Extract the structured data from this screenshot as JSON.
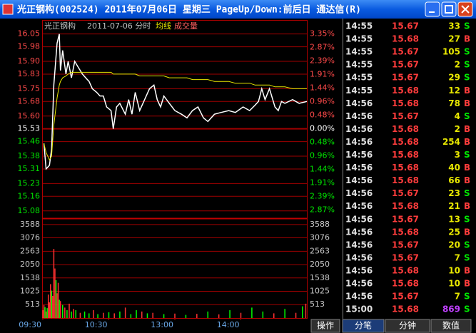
{
  "window": {
    "title": "光正钢构(002524) 2011年07月06日 星期三 PageUp/Down:前后日 通达信(R)"
  },
  "chart_data": [
    {
      "type": "line",
      "title": "光正钢构",
      "subtitle": "2011-07-06 分时",
      "x": [
        1,
        3,
        6,
        8,
        10,
        13,
        15,
        16,
        18,
        21,
        23,
        26,
        29,
        32,
        36,
        39,
        42,
        45,
        49,
        52,
        55,
        58,
        62,
        64,
        67,
        70,
        75,
        78,
        81,
        84,
        88,
        91,
        97,
        101,
        104,
        107,
        110,
        115,
        120,
        126,
        131,
        136,
        141,
        146,
        150,
        156,
        162,
        169,
        175,
        182,
        188,
        193,
        196,
        199,
        202,
        206,
        211,
        214,
        217,
        220,
        227,
        233,
        240
      ],
      "series": [
        {
          "color": "#ffffff",
          "values": [
            15.45,
            15.31,
            15.33,
            15.42,
            15.77,
            16.0,
            16.05,
            15.85,
            15.96,
            15.83,
            15.9,
            15.81,
            15.9,
            15.87,
            15.83,
            15.81,
            15.79,
            15.75,
            15.73,
            15.71,
            15.71,
            15.65,
            15.63,
            15.53,
            15.65,
            15.67,
            15.61,
            15.69,
            15.61,
            15.73,
            15.63,
            15.67,
            15.75,
            15.77,
            15.69,
            15.65,
            15.71,
            15.67,
            15.63,
            15.61,
            15.59,
            15.63,
            15.65,
            15.59,
            15.57,
            15.61,
            15.62,
            15.63,
            15.62,
            15.65,
            15.63,
            15.66,
            15.68,
            15.75,
            15.69,
            15.75,
            15.65,
            15.63,
            15.68,
            15.67,
            15.69,
            15.67,
            15.68
          ]
        },
        {
          "name": "均线",
          "color": "#e8e800",
          "values": [
            15.45,
            15.4,
            15.36,
            15.38,
            15.55,
            15.7,
            15.77,
            15.79,
            15.81,
            15.82,
            15.83,
            15.84,
            15.84,
            15.84,
            15.84,
            15.84,
            15.84,
            15.84,
            15.84,
            15.84,
            15.84,
            15.84,
            15.84,
            15.83,
            15.83,
            15.83,
            15.83,
            15.83,
            15.83,
            15.83,
            15.82,
            15.82,
            15.82,
            15.82,
            15.82,
            15.82,
            15.82,
            15.81,
            15.81,
            15.81,
            15.81,
            15.8,
            15.8,
            15.8,
            15.8,
            15.79,
            15.79,
            15.79,
            15.78,
            15.78,
            15.78,
            15.77,
            15.77,
            15.77,
            15.77,
            15.77,
            15.76,
            15.76,
            15.76,
            15.76,
            15.75,
            15.75,
            15.75
          ]
        }
      ],
      "xlim": [
        0,
        240
      ],
      "ylim": [
        15.04,
        16.08
      ],
      "yticks": [
        16.05,
        15.98,
        {
          "value": 15.9,
          "label": "15.90"
        },
        15.83,
        15.75,
        15.68,
        {
          "value": 15.6,
          "label": "15.60"
        },
        15.53,
        15.46,
        15.38,
        15.31,
        15.23,
        15.16,
        15.08
      ],
      "y2lim": [
        -3.16,
        3.54
      ],
      "y2ticks": [
        {
          "value": 3.35,
          "label": "3.35%"
        },
        {
          "value": 2.87,
          "label": "2.87%"
        },
        {
          "value": 2.39,
          "label": "2.39%"
        },
        {
          "value": 1.91,
          "label": "1.91%"
        },
        {
          "value": 1.44,
          "label": "1.44%"
        },
        {
          "value": 0.96,
          "label": "0.96%"
        },
        {
          "value": 0.48,
          "label": "0.48%"
        },
        {
          "value": 0,
          "label": "0.00%"
        },
        {
          "value": -0.48,
          "label": "0.48%"
        },
        {
          "value": -0.96,
          "label": "0.96%"
        },
        {
          "value": -1.44,
          "label": "1.44%"
        },
        {
          "value": -1.91,
          "label": "1.91%"
        },
        {
          "value": -2.39,
          "label": "2.39%"
        },
        {
          "value": -2.87,
          "label": "2.87%"
        }
      ],
      "grid": true,
      "up_color": "#ff4a4a",
      "down_color": "#00e600",
      "flat_color": "#ffffff"
    },
    {
      "type": "bar",
      "title": "成交量",
      "x": [
        0,
        1,
        2,
        3,
        4,
        5,
        6,
        7,
        8,
        9,
        10,
        11,
        12,
        13,
        14,
        15,
        16,
        18,
        20,
        22,
        24,
        26,
        28,
        30,
        34,
        38,
        42,
        46,
        50,
        55,
        60,
        65,
        70,
        75,
        80,
        85,
        90,
        95,
        100,
        110,
        120,
        130,
        140,
        150,
        160,
        170,
        180,
        190,
        200,
        210,
        220,
        230,
        236,
        239
      ],
      "values": [
        300,
        500,
        420,
        250,
        380,
        900,
        600,
        1300,
        1050,
        850,
        2650,
        1900,
        1450,
        950,
        1350,
        700,
        650,
        500,
        400,
        300,
        550,
        250,
        350,
        300,
        200,
        250,
        180,
        300,
        150,
        200,
        220,
        180,
        250,
        400,
        150,
        300,
        250,
        180,
        200,
        150,
        170,
        120,
        160,
        250,
        140,
        300,
        200,
        400,
        250,
        180,
        350,
        200,
        450,
        550
      ],
      "colors": [
        "#ff3232",
        "#ff3232",
        "#00ff00",
        "#ff3232",
        "#00ff00",
        "#ff3232",
        "#ff3232",
        "#ff3232",
        "#00ff00",
        "#ff3232",
        "#ff3232",
        "#ff3232",
        "#00ff00",
        "#ff3232",
        "#ff3232",
        "#00ff00",
        "#ff3232",
        "#00ff00",
        "#ff3232",
        "#00ff00",
        "#ff3232",
        "#00ff00",
        "#ff3232",
        "#00ff00",
        "#ff3232",
        "#00ff00",
        "#00ff00",
        "#ff3232",
        "#00ff00",
        "#ff3232",
        "#00ff00",
        "#ff3232",
        "#00ff00",
        "#ff3232",
        "#00ff00",
        "#00ff00",
        "#ff3232",
        "#00ff00",
        "#ff3232",
        "#00ff00",
        "#ff3232",
        "#00ff00",
        "#ff3232",
        "#00ff00",
        "#ff3232",
        "#00ff00",
        "#ff3232",
        "#00ff00",
        "#00ff00",
        "#ff3232",
        "#00ff00",
        "#ff3232",
        "#00ff00",
        "#ff3232"
      ],
      "xlim": [
        0,
        240
      ],
      "xticks": [
        {
          "value": 0,
          "label": "09:30"
        },
        {
          "value": 60,
          "label": "10:30"
        },
        {
          "value": 120,
          "label": "13:00"
        },
        {
          "value": 180,
          "label": "14:00"
        }
      ],
      "ylim": [
        0,
        3830
      ],
      "yticks": [
        3588,
        3076,
        2563,
        2050,
        1538,
        1025,
        513
      ],
      "grid": true
    }
  ],
  "trades": {
    "side_colors": {
      "B": "#ff3c3c",
      "S": "#00e600"
    },
    "rows": [
      [
        "14:55",
        15.67,
        33,
        "S"
      ],
      [
        "14:55",
        15.68,
        27,
        "B"
      ],
      [
        "14:55",
        15.67,
        105,
        "S"
      ],
      [
        "14:55",
        15.67,
        2,
        "S"
      ],
      [
        "14:55",
        15.67,
        29,
        "S"
      ],
      [
        "14:55",
        15.68,
        12,
        "B"
      ],
      [
        "14:56",
        15.68,
        78,
        "B"
      ],
      [
        "14:56",
        15.67,
        4,
        "S"
      ],
      [
        "14:56",
        15.68,
        2,
        "B"
      ],
      [
        "14:56",
        15.68,
        254,
        "B"
      ],
      [
        "14:56",
        15.68,
        3,
        "S"
      ],
      [
        "14:56",
        15.68,
        40,
        "B"
      ],
      [
        "14:56",
        15.68,
        66,
        "B"
      ],
      [
        "14:56",
        15.67,
        23,
        "S"
      ],
      [
        "14:56",
        15.68,
        21,
        "B"
      ],
      [
        "14:56",
        15.67,
        13,
        "S"
      ],
      [
        "14:56",
        15.68,
        25,
        "B"
      ],
      [
        "14:56",
        15.67,
        20,
        "S"
      ],
      [
        "14:56",
        15.67,
        7,
        "S"
      ],
      [
        "14:56",
        15.68,
        10,
        "B"
      ],
      [
        "14:56",
        15.68,
        10,
        "B"
      ],
      [
        "14:56",
        15.67,
        7,
        "S"
      ],
      [
        "15:00",
        15.68,
        869,
        "S"
      ]
    ]
  },
  "tabs": [
    "操作",
    "分笔",
    "分钟",
    "数值"
  ]
}
